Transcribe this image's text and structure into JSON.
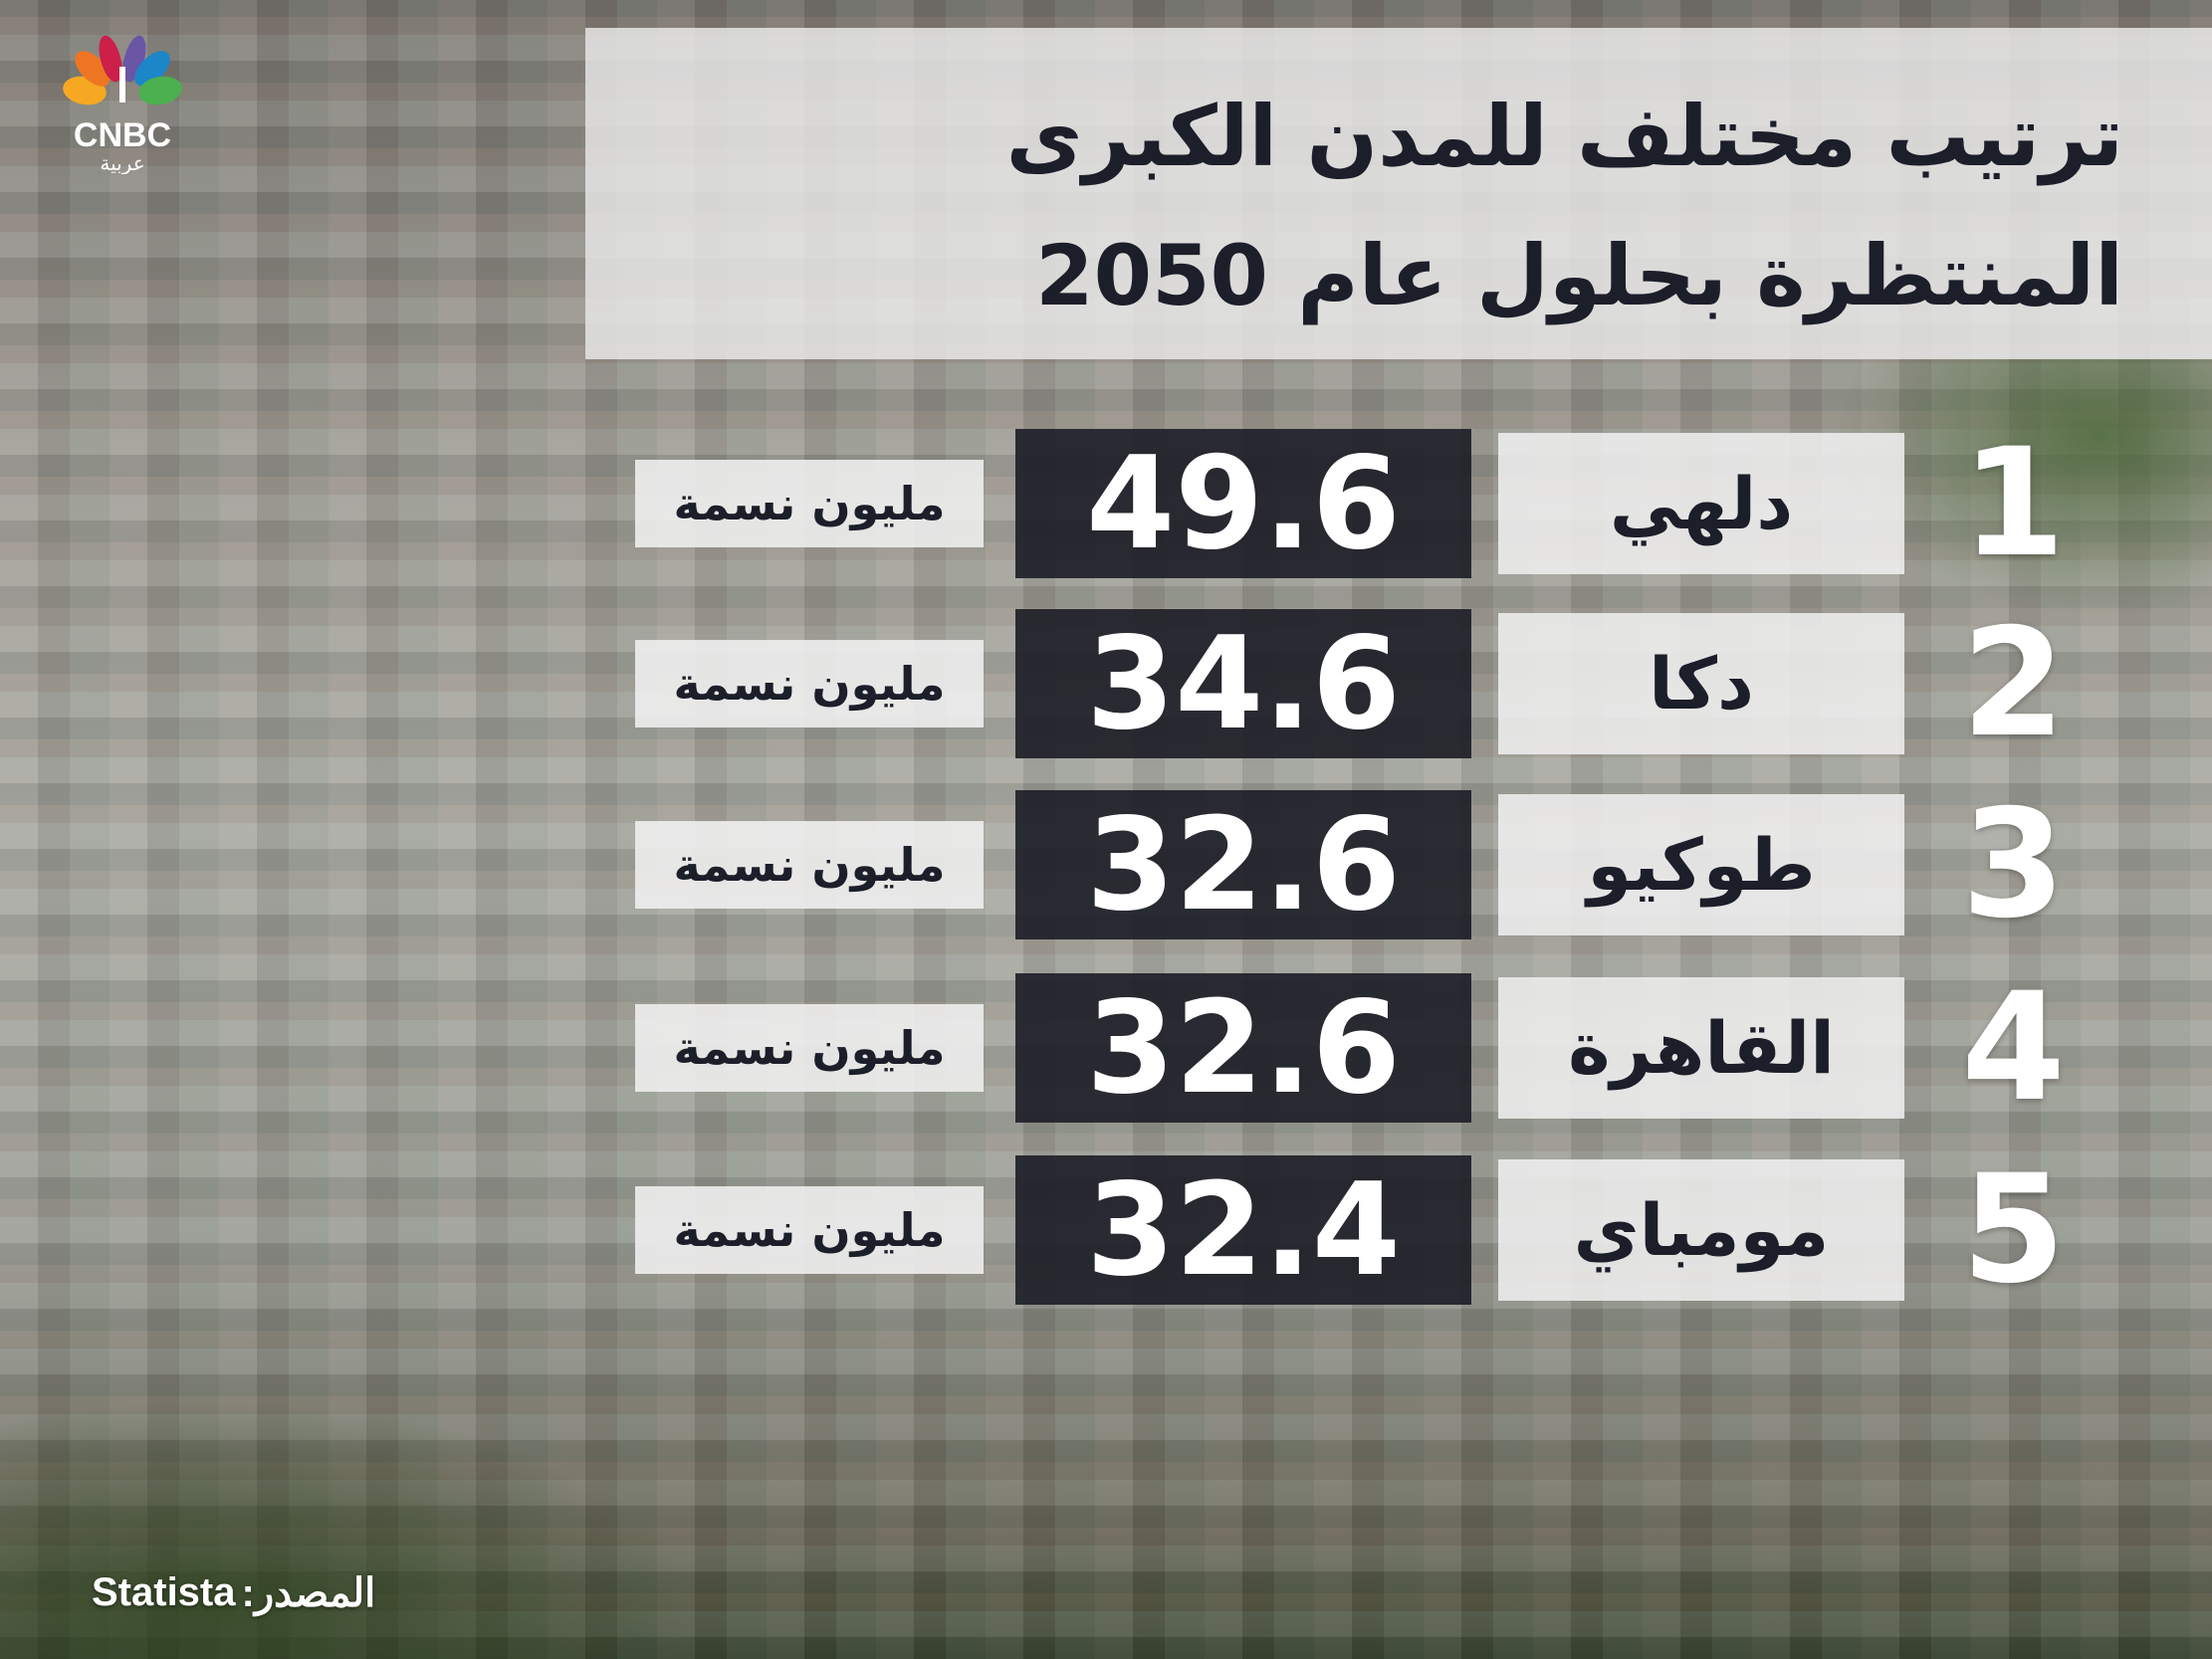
{
  "brand": {
    "logo_text": "CNBC",
    "logo_subtext": "عربية"
  },
  "title": {
    "line1": "ترتيب مختلف للمدن الكبرى",
    "line2": "المنتظرة بحلول عام 2050"
  },
  "rows": [
    {
      "rank": "1",
      "city": "دلهي",
      "value": "49.6",
      "unit": "مليون نسمة"
    },
    {
      "rank": "2",
      "city": "دكا",
      "value": "34.6",
      "unit": "مليون نسمة"
    },
    {
      "rank": "3",
      "city": "طوكيو",
      "value": "32.6",
      "unit": "مليون نسمة"
    },
    {
      "rank": "4",
      "city": "القاهرة",
      "value": "32.6",
      "unit": "مليون نسمة"
    },
    {
      "rank": "5",
      "city": "مومباي",
      "value": "32.4",
      "unit": "مليون نسمة"
    }
  ],
  "source": {
    "label": "المصدر:",
    "name": "Statista"
  }
}
